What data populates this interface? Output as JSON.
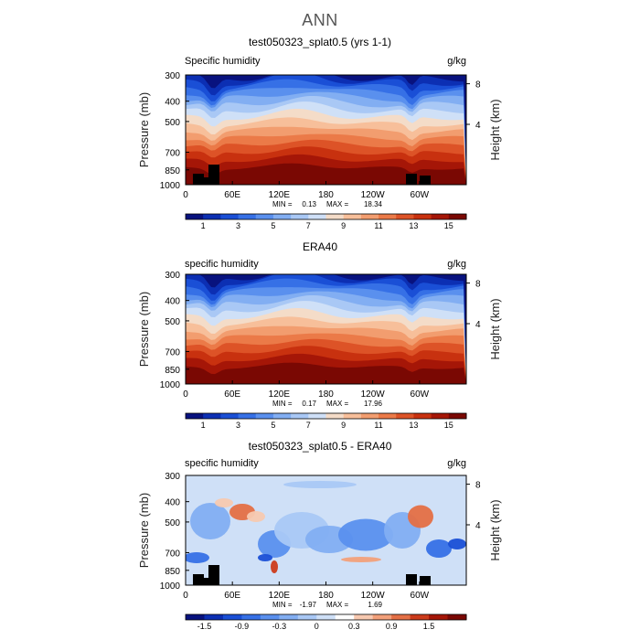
{
  "page": {
    "title": "ANN"
  },
  "chart_data": [
    {
      "type": "heatmap",
      "title": "test050323_splat0.5 (yrs 1-1)",
      "left_label": "Specific humidity",
      "units": "g/kg",
      "ylabel": "Pressure (mb)",
      "ylabel_right": "Height (km)",
      "x_ticks": [
        "0",
        "60E",
        "120E",
        "180",
        "120W",
        "60W"
      ],
      "y_ticks": [
        "300",
        "400",
        "500",
        "700",
        "850",
        "1000"
      ],
      "y_ticks_right": [
        "8",
        "4"
      ],
      "stats": {
        "min_label": "MIN =",
        "min": "0.13",
        "max_label": "MAX =",
        "max": "18.34"
      },
      "colorbar": {
        "labels": [
          "1",
          "3",
          "5",
          "7",
          "9",
          "11",
          "13",
          "15"
        ]
      },
      "colors": [
        "#08127e",
        "#0c2fb3",
        "#1a4fd6",
        "#3670e6",
        "#5a90ee",
        "#82aef2",
        "#a9c8f5",
        "#cfe0f7",
        "#f4dcc8",
        "#f7bf9a",
        "#f29d6f",
        "#eb7a48",
        "#dd5327",
        "#c8310f",
        "#a51607",
        "#7a0803"
      ]
    },
    {
      "type": "heatmap",
      "title": "ERA40",
      "left_label": "specific humidity",
      "units": "g/kg",
      "ylabel": "Pressure (mb)",
      "ylabel_right": "Height (km)",
      "x_ticks": [
        "0",
        "60E",
        "120E",
        "180",
        "120W",
        "60W"
      ],
      "y_ticks": [
        "300",
        "400",
        "500",
        "700",
        "850",
        "1000"
      ],
      "y_ticks_right": [
        "8",
        "4"
      ],
      "stats": {
        "min_label": "MIN =",
        "min": "0.17",
        "max_label": "MAX =",
        "max": "17.96"
      },
      "colorbar": {
        "labels": [
          "1",
          "3",
          "5",
          "7",
          "9",
          "11",
          "13",
          "15"
        ]
      },
      "colors": [
        "#08127e",
        "#0c2fb3",
        "#1a4fd6",
        "#3670e6",
        "#5a90ee",
        "#82aef2",
        "#a9c8f5",
        "#cfe0f7",
        "#f4dcc8",
        "#f7bf9a",
        "#f29d6f",
        "#eb7a48",
        "#dd5327",
        "#c8310f",
        "#a51607",
        "#7a0803"
      ]
    },
    {
      "type": "heatmap",
      "title": "test050323_splat0.5 - ERA40",
      "left_label": "specific humidity",
      "units": "g/kg",
      "ylabel": "Pressure (mb)",
      "ylabel_right": "Height (km)",
      "x_ticks": [
        "0",
        "60E",
        "120E",
        "180",
        "120W",
        "60W"
      ],
      "y_ticks": [
        "300",
        "400",
        "500",
        "700",
        "850",
        "1000"
      ],
      "y_ticks_right": [
        "8",
        "4"
      ],
      "stats": {
        "min_label": "MIN =",
        "min": "-1.97",
        "max_label": "MAX =",
        "max": "1.69"
      },
      "colorbar": {
        "labels": [
          "-1.5",
          "-0.9",
          "-0.3",
          "0",
          "0.3",
          "0.9",
          "1.5"
        ]
      },
      "colors": [
        "#08127e",
        "#0c2fb3",
        "#1a4fd6",
        "#3670e6",
        "#5a90ee",
        "#82aef2",
        "#a9c8f5",
        "#cfe0f7",
        "#ffffff",
        "#f7c9b0",
        "#f2a07a",
        "#e46f45",
        "#cc3b1b",
        "#a51607",
        "#7a0803"
      ]
    }
  ]
}
